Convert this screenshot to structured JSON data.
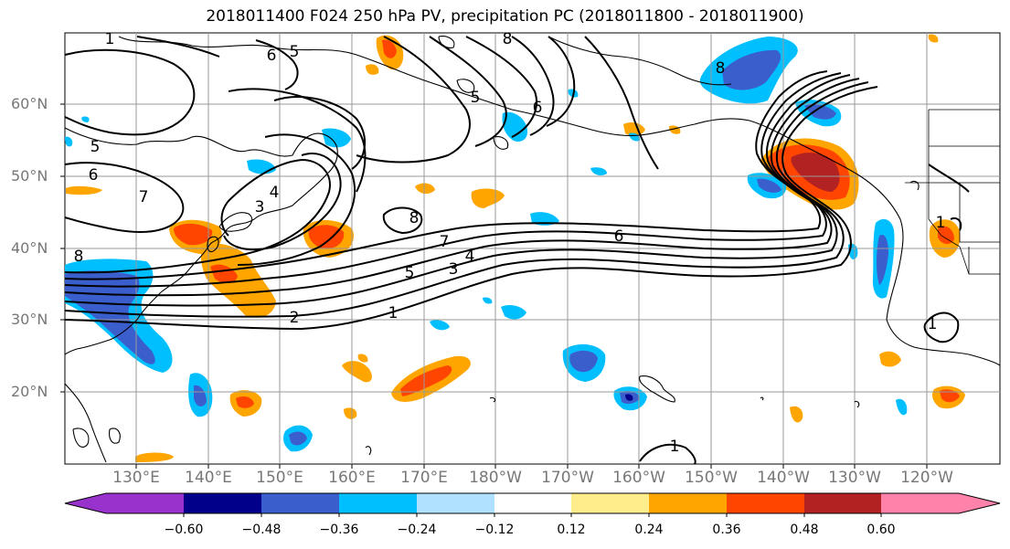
{
  "title": "2018011400 F024 250 hPa PV, precipitation PC (2018011800 - 2018011900)",
  "lat_labels": [
    "60°N",
    "50°N",
    "40°N",
    "30°N",
    "20°N"
  ],
  "lon_labels": [
    "130°E",
    "140°E",
    "150°E",
    "160°E",
    "170°E",
    "180°W",
    "170°W",
    "160°W",
    "150°W",
    "140°W",
    "130°W",
    "120°W"
  ],
  "contour_labels": [
    "6",
    "5",
    "5",
    "6",
    "8",
    "7",
    "4",
    "3",
    "8",
    "7",
    "6",
    "5",
    "4",
    "3",
    "2",
    "1",
    "1",
    "6",
    "5",
    "8",
    "8",
    "1",
    "1",
    "1"
  ],
  "colorbar": {
    "ticks": [
      "−0.60",
      "−0.48",
      "−0.36",
      "−0.24",
      "−0.12",
      "0.12",
      "0.24",
      "0.36",
      "0.48",
      "0.60"
    ],
    "colors": [
      "#9932cc",
      "#00008b",
      "#3a5fcd",
      "#00bfff",
      "#b0e2ff",
      "#ffffff",
      "#ffec8b",
      "#ffa500",
      "#ff4500",
      "#b22222",
      "#ff82ab"
    ]
  },
  "colors": {
    "neg_deep": "#00008b",
    "neg_strong": "#3a5fcd",
    "neg_mid": "#00bfff",
    "neg_light": "#b0e2ff",
    "pos_light": "#ffec8b",
    "pos_mid": "#ffa500",
    "pos_strong": "#ff4500",
    "pos_deep": "#b22222"
  }
}
